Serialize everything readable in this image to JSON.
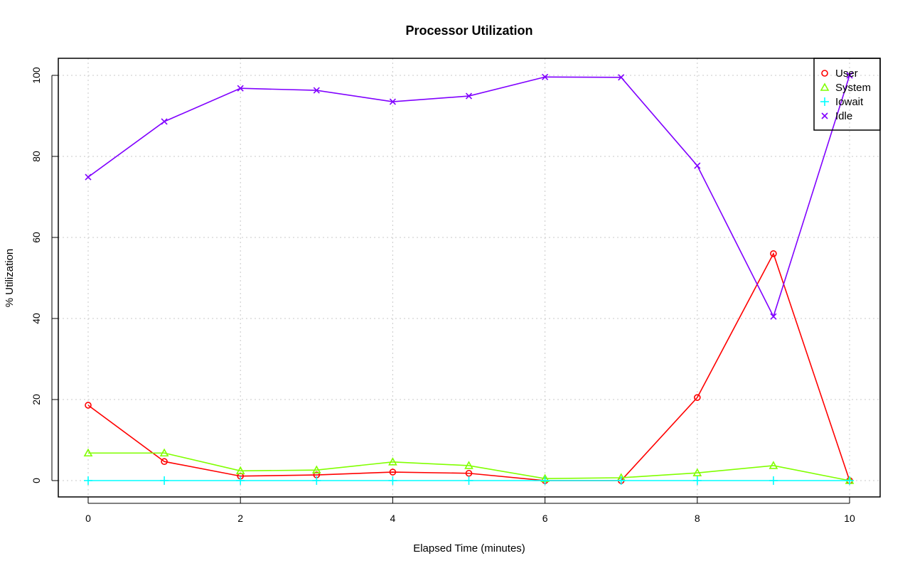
{
  "chart_data": {
    "type": "line",
    "title": "Processor Utilization",
    "xlabel": "Elapsed Time (minutes)",
    "ylabel": "% Utilization",
    "xlim": [
      0,
      10
    ],
    "ylim": [
      0,
      100
    ],
    "x_ticks": [
      0,
      2,
      4,
      6,
      8,
      10
    ],
    "y_ticks": [
      0,
      20,
      40,
      60,
      80,
      100
    ],
    "grid": true,
    "legend_position": "top-right",
    "x": [
      0,
      1,
      2,
      3,
      4,
      5,
      6,
      7,
      8,
      9,
      10
    ],
    "series": [
      {
        "name": "User",
        "color": "#ff0000",
        "marker": "circle",
        "values": [
          18.6,
          4.7,
          1.1,
          1.4,
          2.1,
          1.8,
          0,
          0,
          20.5,
          56.0,
          0
        ]
      },
      {
        "name": "System",
        "color": "#80ff00",
        "marker": "triangle",
        "values": [
          6.8,
          6.8,
          2.4,
          2.6,
          4.6,
          3.7,
          0.5,
          0.7,
          1.9,
          3.7,
          0
        ]
      },
      {
        "name": "Iowait",
        "color": "#00ffff",
        "marker": "plus",
        "values": [
          0,
          0,
          0,
          0,
          0,
          0,
          0,
          0,
          0,
          0,
          0
        ]
      },
      {
        "name": "Idle",
        "color": "#8000ff",
        "marker": "cross",
        "values": [
          74.9,
          88.6,
          96.8,
          96.3,
          93.5,
          94.9,
          99.6,
          99.5,
          77.7,
          40.5,
          100
        ]
      }
    ]
  }
}
